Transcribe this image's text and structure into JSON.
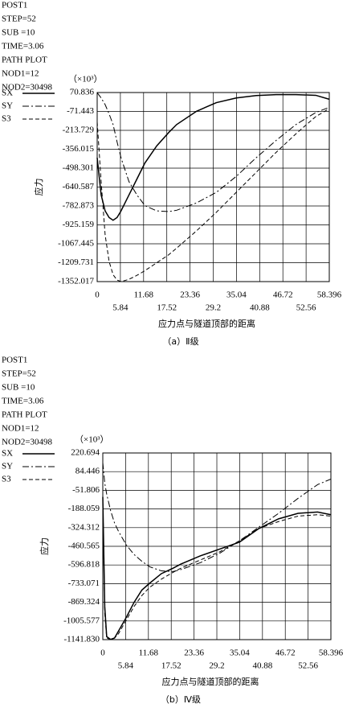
{
  "chart_data": [
    {
      "type": "line",
      "header_lines": [
        "POST1",
        "STEP=52",
        "SUB =10",
        "TIME=3.06",
        "PATH PLOT",
        "NOD1=12",
        "NOD2=30498"
      ],
      "multiplier": "（×10³）",
      "ylabel": "应力",
      "xlabel": "应力点与隧道顶部的距离",
      "caption": "（a）Ⅱ级",
      "grid": true,
      "x": [
        0,
        1,
        2,
        3,
        4,
        5,
        6,
        8,
        10,
        12,
        15,
        18,
        20,
        25,
        30,
        35,
        40,
        45,
        50,
        55,
        58.396
      ],
      "series": [
        {
          "name": "SX",
          "color": "#000000",
          "style": "solid",
          "values": [
            -420,
            -700,
            -820,
            -870,
            -890,
            -870,
            -820,
            -700,
            -580,
            -460,
            -330,
            -230,
            -170,
            -70,
            -5,
            30,
            48,
            55,
            55,
            50,
            20
          ]
        },
        {
          "name": "SY",
          "color": "#000000",
          "style": "dashdot",
          "values": [
            70,
            30,
            -20,
            -90,
            -170,
            -300,
            -420,
            -600,
            -700,
            -780,
            -820,
            -825,
            -815,
            -760,
            -680,
            -560,
            -420,
            -290,
            -170,
            -80,
            -40
          ]
        },
        {
          "name": "S3",
          "color": "#000000",
          "style": "dashed",
          "values": [
            -150,
            -600,
            -1000,
            -1200,
            -1300,
            -1340,
            -1352,
            -1335,
            -1305,
            -1270,
            -1210,
            -1150,
            -1100,
            -970,
            -830,
            -680,
            -530,
            -380,
            -240,
            -110,
            -50
          ]
        }
      ],
      "xlim": [
        0,
        58.396
      ],
      "xticks": [
        0,
        5.84,
        11.68,
        17.52,
        23.36,
        29.2,
        35.04,
        40.88,
        46.72,
        52.56,
        58.396
      ],
      "ylim": [
        -1352.017,
        70.836
      ],
      "yticks": [
        70.836,
        -71.443,
        -213.729,
        -356.015,
        -498.301,
        -640.587,
        -782.873,
        -925.159,
        -1067.445,
        -1209.731,
        -1352.017
      ]
    },
    {
      "type": "line",
      "header_lines": [
        "POST1",
        "STEP=52",
        "SUB =10",
        "TIME=3.06",
        "PATH PLOT",
        "NOD1=12",
        "NOD2=30498"
      ],
      "multiplier": "（×10³）",
      "ylabel": "应力",
      "xlabel": "应力点与隧道顶部的距离",
      "caption": "（b）Ⅳ级",
      "grid": true,
      "x": [
        0,
        0.5,
        1,
        2,
        3,
        4,
        6,
        8,
        10,
        12,
        15,
        18,
        20,
        25,
        30,
        35,
        40,
        45,
        50,
        55,
        58.396
      ],
      "series": [
        {
          "name": "SX",
          "color": "#000000",
          "style": "solid",
          "values": [
            -100,
            -900,
            -1120,
            -1140,
            -1130,
            -1080,
            -980,
            -870,
            -780,
            -730,
            -660,
            -620,
            -590,
            -530,
            -480,
            -430,
            -330,
            -260,
            -220,
            -210,
            -230
          ]
        },
        {
          "name": "SY",
          "color": "#000000",
          "style": "dashdot",
          "values": [
            150,
            0,
            -80,
            -200,
            -290,
            -350,
            -450,
            -520,
            -570,
            -610,
            -640,
            -645,
            -630,
            -580,
            -510,
            -420,
            -320,
            -220,
            -110,
            -10,
            30
          ]
        },
        {
          "name": "S3",
          "color": "#000000",
          "style": "dashed",
          "values": [
            -100,
            -950,
            -1130,
            -1141,
            -1130,
            -1100,
            -1000,
            -900,
            -820,
            -760,
            -700,
            -650,
            -620,
            -560,
            -500,
            -420,
            -330,
            -280,
            -240,
            -230,
            -240
          ]
        }
      ],
      "xlim": [
        0,
        58.396
      ],
      "xticks": [
        0,
        5.84,
        11.68,
        17.52,
        23.36,
        29.2,
        35.04,
        40.88,
        46.72,
        52.56,
        58.396
      ],
      "ylim": [
        -1141.83,
        220.694
      ],
      "yticks": [
        220.694,
        84.446,
        -51.806,
        -188.059,
        -324.312,
        -460.565,
        -596.818,
        -733.071,
        -869.324,
        -1005.577,
        {
          "value": -1141.83,
          "label": "-1141.830"
        }
      ]
    }
  ]
}
